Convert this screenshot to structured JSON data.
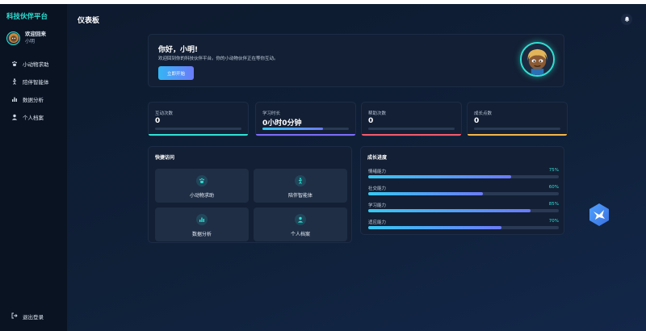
{
  "sidebar": {
    "brand": "科技伙伴平台",
    "user": {
      "greeting": "欢迎回来",
      "name": "小明"
    },
    "items": [
      {
        "label": "小动物求助",
        "icon": "paw-icon"
      },
      {
        "label": "陪伴智能体",
        "icon": "figure-icon"
      },
      {
        "label": "数据分析",
        "icon": "bar-chart-icon"
      },
      {
        "label": "个人档案",
        "icon": "user-icon"
      }
    ],
    "logout": {
      "label": "退出登录",
      "icon": "logout-icon"
    }
  },
  "header": {
    "title": "仪表板",
    "bell_icon": "bell-icon"
  },
  "welcome": {
    "heading": "你好，小明!",
    "message": "欢迎回到你的科技伙伴平台。你的小动物伙伴正在等你互动。",
    "button": "立即开始"
  },
  "stats": [
    {
      "label": "互动次数",
      "value": "0",
      "progress": 0,
      "accent": "#2fe0d3"
    },
    {
      "label": "学习时长",
      "value": "0小时0分钟",
      "progress": 0.7,
      "accent": "#7b6cf6"
    },
    {
      "label": "帮助次数",
      "value": "0",
      "progress": 0,
      "accent": "#f25a6b"
    },
    {
      "label": "成长点数",
      "value": "0",
      "progress": 0,
      "accent": "#f3b54a"
    }
  ],
  "quick_access": {
    "title": "快捷访问",
    "tiles": [
      {
        "label": "小动物求助",
        "icon": "paw-icon"
      },
      {
        "label": "陪伴智能体",
        "icon": "figure-icon"
      },
      {
        "label": "数据分析",
        "icon": "bar-chart-icon"
      },
      {
        "label": "个人档案",
        "icon": "user-icon"
      }
    ]
  },
  "growth": {
    "title": "成长进度",
    "items": [
      {
        "name": "情绪能力",
        "percent_label": "75%",
        "value": 0.75
      },
      {
        "name": "社交能力",
        "percent_label": "60%",
        "value": 0.6
      },
      {
        "name": "学习能力",
        "percent_label": "85%",
        "value": 0.85
      },
      {
        "name": "适应能力",
        "percent_label": "70%",
        "value": 0.7
      }
    ]
  },
  "colors": {
    "brand": "#2fe0d3",
    "button_gradient_start": "#35b5f5",
    "button_gradient_end": "#6b7bfa"
  }
}
